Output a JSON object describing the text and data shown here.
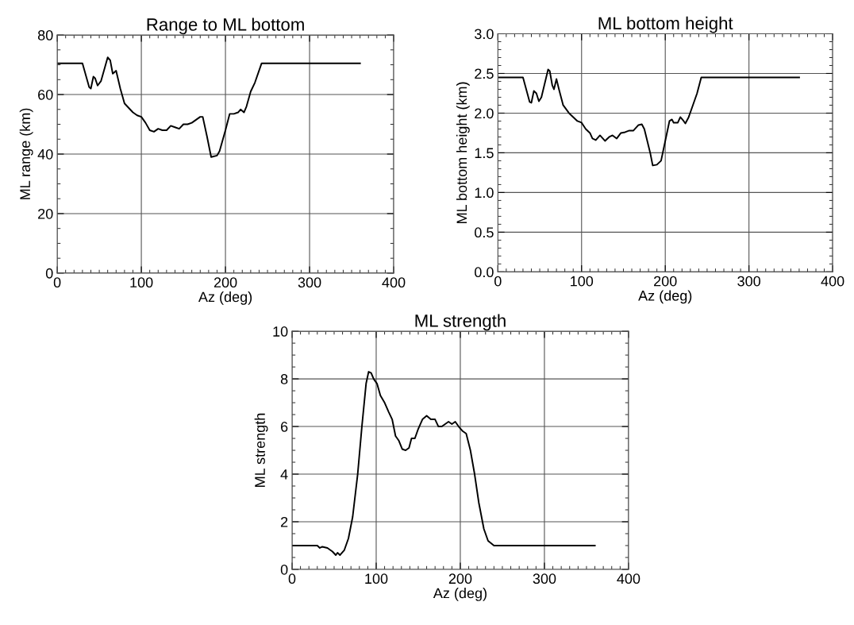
{
  "chart_data": [
    {
      "type": "line",
      "title": "Range to ML bottom",
      "xlabel": "Az (deg)",
      "ylabel": "ML range (km)",
      "xlim": [
        0,
        400
      ],
      "xticks": [
        0,
        100,
        200,
        300,
        400
      ],
      "ylim": [
        0,
        80
      ],
      "yticks": [
        0,
        20,
        40,
        60,
        80
      ],
      "grid": true,
      "marker": "none",
      "line_style": "solid",
      "series": [
        {
          "color": "#000000",
          "x": [
            0,
            30,
            38,
            40,
            43,
            45,
            48,
            52,
            60,
            63,
            66,
            68,
            70,
            75,
            80,
            90,
            95,
            100,
            105,
            110,
            115,
            120,
            125,
            130,
            135,
            140,
            145,
            150,
            155,
            160,
            165,
            170,
            173,
            178,
            183,
            190,
            193,
            200,
            205,
            210,
            215,
            218,
            222,
            225,
            230,
            235,
            243,
            360
          ],
          "values": [
            70.5,
            70.5,
            62.5,
            62,
            66,
            65.5,
            63,
            64.5,
            72.5,
            71.5,
            67,
            67.5,
            68,
            62,
            57,
            54,
            53,
            52.5,
            50.5,
            48,
            47.5,
            48.5,
            48,
            48,
            49.5,
            49,
            48.5,
            50,
            50,
            50.5,
            51.5,
            52.5,
            52.5,
            46,
            39,
            39.5,
            41,
            48,
            53.5,
            53.5,
            54,
            55,
            54,
            56,
            61,
            64,
            70.5,
            70.5
          ]
        }
      ]
    },
    {
      "type": "line",
      "title": "ML bottom height",
      "xlabel": "Az (deg)",
      "ylabel": "ML bottom height (km)",
      "xlim": [
        0,
        400
      ],
      "xticks": [
        0,
        100,
        200,
        300,
        400
      ],
      "ylim": [
        0,
        3
      ],
      "yticks": [
        {
          "value": 0,
          "label": "0.0"
        },
        0.5,
        {
          "value": 1,
          "label": "1.0"
        },
        1.5,
        {
          "value": 2,
          "label": "2.0"
        },
        2.5,
        {
          "value": 3,
          "label": "3.0"
        }
      ],
      "grid": true,
      "marker": "none",
      "line_style": "solid",
      "series": [
        {
          "color": "#000000",
          "x": [
            0,
            30,
            38,
            40,
            43,
            46,
            49,
            52,
            60,
            62,
            65,
            67,
            70,
            73,
            78,
            85,
            90,
            95,
            100,
            105,
            110,
            113,
            117,
            122,
            128,
            133,
            137,
            142,
            147,
            152,
            157,
            162,
            168,
            172,
            175,
            182,
            185,
            190,
            195,
            200,
            205,
            208,
            210,
            215,
            218,
            222,
            224,
            228,
            233,
            238,
            243,
            360
          ],
          "values": [
            2.45,
            2.45,
            2.14,
            2.13,
            2.28,
            2.25,
            2.15,
            2.2,
            2.55,
            2.53,
            2.35,
            2.3,
            2.43,
            2.3,
            2.1,
            2.0,
            1.95,
            1.9,
            1.88,
            1.8,
            1.75,
            1.68,
            1.66,
            1.72,
            1.65,
            1.7,
            1.72,
            1.68,
            1.75,
            1.76,
            1.78,
            1.78,
            1.85,
            1.86,
            1.8,
            1.5,
            1.34,
            1.35,
            1.4,
            1.65,
            1.9,
            1.92,
            1.88,
            1.88,
            1.95,
            1.9,
            1.87,
            1.95,
            2.1,
            2.25,
            2.45,
            2.45
          ]
        }
      ]
    },
    {
      "type": "line",
      "title": "ML strength",
      "xlabel": "Az (deg)",
      "ylabel": "ML strength",
      "xlim": [
        0,
        400
      ],
      "xticks": [
        0,
        100,
        200,
        300,
        400
      ],
      "ylim": [
        0,
        10
      ],
      "yticks": [
        0,
        2,
        4,
        6,
        8,
        10
      ],
      "grid": true,
      "marker": "none",
      "line_style": "solid",
      "series": [
        {
          "color": "#000000",
          "x": [
            0,
            30,
            33,
            36,
            42,
            48,
            52,
            54,
            57,
            62,
            67,
            72,
            78,
            83,
            88,
            91,
            94,
            97,
            101,
            105,
            110,
            115,
            119,
            123,
            127,
            131,
            135,
            139,
            142,
            146,
            150,
            155,
            160,
            165,
            170,
            174,
            178,
            182,
            186,
            190,
            194,
            198,
            203,
            207,
            212,
            217,
            222,
            228,
            233,
            240,
            360
          ],
          "values": [
            1,
            1,
            0.9,
            0.95,
            0.9,
            0.75,
            0.6,
            0.7,
            0.6,
            0.8,
            1.3,
            2.2,
            4,
            6,
            7.8,
            8.3,
            8.25,
            8.0,
            7.8,
            7.3,
            7.0,
            6.6,
            6.3,
            5.6,
            5.4,
            5.05,
            5.0,
            5.1,
            5.5,
            5.5,
            5.9,
            6.3,
            6.45,
            6.3,
            6.3,
            6.0,
            6.0,
            6.1,
            6.2,
            6.1,
            6.2,
            6.0,
            5.8,
            5.7,
            5.0,
            4.0,
            2.8,
            1.7,
            1.2,
            1.0,
            1.0
          ]
        }
      ]
    }
  ]
}
